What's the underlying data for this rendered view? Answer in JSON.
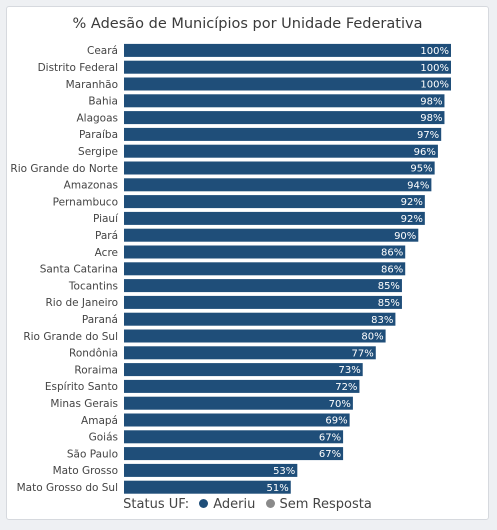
{
  "chart_data": {
    "type": "bar",
    "orientation": "horizontal",
    "title": "% Adesão de Municípios por Unidade Federativa",
    "categories": [
      "Ceará",
      "Distrito Federal",
      "Maranhão",
      "Bahia",
      "Alagoas",
      "Paraíba",
      "Sergipe",
      "Rio Grande do Norte",
      "Amazonas",
      "Pernambuco",
      "Piauí",
      "Pará",
      "Acre",
      "Santa Catarina",
      "Tocantins",
      "Rio de Janeiro",
      "Paraná",
      "Rio Grande do Sul",
      "Rondônia",
      "Roraima",
      "Espírito Santo",
      "Minas Gerais",
      "Amapá",
      "Goiás",
      "São Paulo",
      "Mato Grosso",
      "Mato Grosso do Sul"
    ],
    "values": [
      100,
      100,
      100,
      98,
      98,
      97,
      96,
      95,
      94,
      92,
      92,
      90,
      86,
      86,
      85,
      85,
      83,
      80,
      77,
      73,
      72,
      70,
      69,
      67,
      67,
      53,
      51
    ],
    "value_labels": [
      "100%",
      "100%",
      "100%",
      "98%",
      "98%",
      "97%",
      "96%",
      "95%",
      "94%",
      "92%",
      "92%",
      "90%",
      "86%",
      "86%",
      "85%",
      "85%",
      "83%",
      "80%",
      "77%",
      "73%",
      "72%",
      "70%",
      "69%",
      "67%",
      "67%",
      "53%",
      "51%"
    ],
    "xlim": [
      0,
      100
    ],
    "grid": false,
    "legend_placement": "bottom-center",
    "bar_color": "#1f4e79"
  },
  "legend": {
    "label": "Status UF:",
    "items": [
      {
        "label": "Aderiu",
        "color": "#1f4e79"
      },
      {
        "label": "Sem Resposta",
        "color": "#8a8a8a"
      }
    ]
  }
}
